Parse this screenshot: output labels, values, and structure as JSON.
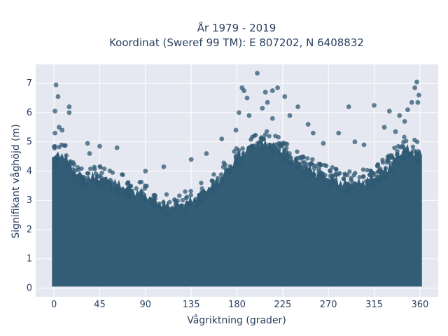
{
  "chart_data": {
    "type": "scatter",
    "title_line1": "År 1979 - 2019",
    "title_line2": "Koordinat (Sweref 99 TM): E 807202, N 6408832",
    "xlabel": "Vågriktning (grader)",
    "ylabel": "Signifikant våghöjd (m)",
    "xlim": [
      -18,
      378
    ],
    "ylim": [
      -0.3,
      7.65
    ],
    "xticks": [
      0,
      45,
      90,
      135,
      180,
      225,
      270,
      315,
      360
    ],
    "yticks": [
      0,
      1,
      2,
      3,
      4,
      5,
      6,
      7
    ],
    "grid": true,
    "marker_color": "#2f5a73",
    "plot_bgcolor": "#e5e8f0",
    "dense_cloud": {
      "note": "Dense cloud of points from ~0.2 m up to this upper envelope (x in degrees, y in metres)",
      "envelope_x": [
        0,
        10,
        20,
        30,
        45,
        60,
        75,
        90,
        105,
        120,
        135,
        150,
        165,
        180,
        195,
        210,
        225,
        240,
        255,
        270,
        285,
        300,
        315,
        330,
        345,
        360
      ],
      "envelope_y": [
        4.5,
        4.6,
        4.0,
        3.8,
        3.8,
        3.6,
        3.4,
        3.2,
        2.9,
        2.8,
        3.0,
        3.4,
        3.8,
        4.5,
        4.9,
        5.0,
        4.7,
        4.3,
        4.0,
        3.8,
        3.6,
        3.6,
        3.8,
        4.2,
        4.8,
        4.6
      ]
    },
    "outliers": [
      {
        "x": 2,
        "y": 6.95
      },
      {
        "x": 4,
        "y": 6.55
      },
      {
        "x": 1,
        "y": 6.05
      },
      {
        "x": 15,
        "y": 6.2
      },
      {
        "x": 15,
        "y": 6.0
      },
      {
        "x": 1,
        "y": 5.3
      },
      {
        "x": 5,
        "y": 5.5
      },
      {
        "x": 8,
        "y": 5.4
      },
      {
        "x": 33,
        "y": 4.95
      },
      {
        "x": 45,
        "y": 4.85
      },
      {
        "x": 62,
        "y": 4.8
      },
      {
        "x": 35,
        "y": 4.6
      },
      {
        "x": 90,
        "y": 4.0
      },
      {
        "x": 108,
        "y": 4.15
      },
      {
        "x": 135,
        "y": 4.4
      },
      {
        "x": 150,
        "y": 4.6
      },
      {
        "x": 165,
        "y": 5.1
      },
      {
        "x": 179,
        "y": 5.4
      },
      {
        "x": 182,
        "y": 6.0
      },
      {
        "x": 185,
        "y": 6.85
      },
      {
        "x": 187,
        "y": 6.75
      },
      {
        "x": 190,
        "y": 6.5
      },
      {
        "x": 192,
        "y": 5.9
      },
      {
        "x": 200,
        "y": 7.35
      },
      {
        "x": 205,
        "y": 6.15
      },
      {
        "x": 208,
        "y": 6.7
      },
      {
        "x": 210,
        "y": 6.35
      },
      {
        "x": 215,
        "y": 6.75
      },
      {
        "x": 220,
        "y": 6.85
      },
      {
        "x": 227,
        "y": 6.55
      },
      {
        "x": 215,
        "y": 5.8
      },
      {
        "x": 232,
        "y": 5.9
      },
      {
        "x": 240,
        "y": 6.2
      },
      {
        "x": 250,
        "y": 5.6
      },
      {
        "x": 255,
        "y": 5.3
      },
      {
        "x": 265,
        "y": 4.95
      },
      {
        "x": 280,
        "y": 5.3
      },
      {
        "x": 290,
        "y": 6.2
      },
      {
        "x": 296,
        "y": 5.0
      },
      {
        "x": 305,
        "y": 4.9
      },
      {
        "x": 315,
        "y": 6.25
      },
      {
        "x": 325,
        "y": 5.5
      },
      {
        "x": 330,
        "y": 6.05
      },
      {
        "x": 336,
        "y": 5.35
      },
      {
        "x": 340,
        "y": 5.9
      },
      {
        "x": 348,
        "y": 6.1
      },
      {
        "x": 352,
        "y": 6.35
      },
      {
        "x": 355,
        "y": 6.85
      },
      {
        "x": 357,
        "y": 7.05
      },
      {
        "x": 359,
        "y": 6.6
      },
      {
        "x": 358,
        "y": 6.35
      },
      {
        "x": 345,
        "y": 5.7
      }
    ]
  }
}
